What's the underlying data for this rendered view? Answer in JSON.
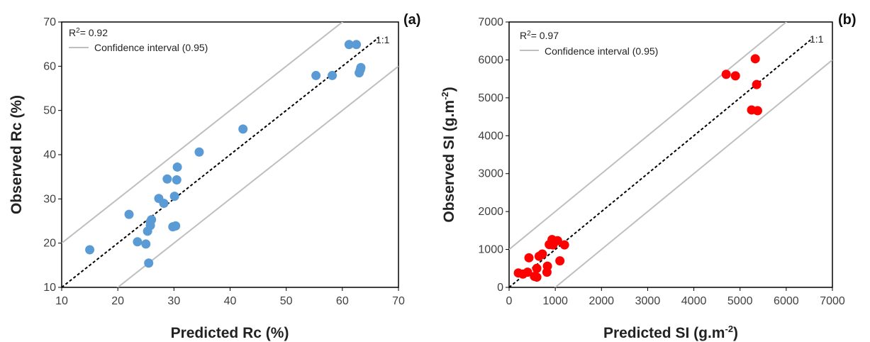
{
  "chart_data": [
    {
      "type": "scatter",
      "panel_label": "(a)",
      "xlabel": "Predicted Rc (%)",
      "ylabel": "Observed Rc (%)",
      "xlim": [
        10,
        70
      ],
      "ylim": [
        10,
        70
      ],
      "x_ticks": [
        "10",
        "20",
        "30",
        "40",
        "50",
        "60",
        "70"
      ],
      "y_ticks": [
        "10",
        "20",
        "30",
        "40",
        "50",
        "60",
        "70"
      ],
      "grid": false,
      "r2_prefix": "R",
      "r2_sup": "2",
      "r2_rest": "= 0.92",
      "legend_entry": "Confidence interval (0.95)",
      "legend_position": "top-left",
      "one_to_one_label": "1:1",
      "ci_offset": 10,
      "color": "#5b9bd5",
      "points": [
        {
          "x": 15,
          "y": 18.5
        },
        {
          "x": 22,
          "y": 26.5
        },
        {
          "x": 23.5,
          "y": 20.3
        },
        {
          "x": 25,
          "y": 19.8
        },
        {
          "x": 25.5,
          "y": 15.5
        },
        {
          "x": 25.3,
          "y": 22.7
        },
        {
          "x": 25.8,
          "y": 24
        },
        {
          "x": 25.8,
          "y": 24.8
        },
        {
          "x": 26,
          "y": 25.3
        },
        {
          "x": 27.3,
          "y": 30.1
        },
        {
          "x": 28.2,
          "y": 29
        },
        {
          "x": 28.8,
          "y": 34.5
        },
        {
          "x": 29.8,
          "y": 23.7
        },
        {
          "x": 30.3,
          "y": 23.9
        },
        {
          "x": 30.1,
          "y": 30.6
        },
        {
          "x": 30.5,
          "y": 34.3
        },
        {
          "x": 30.6,
          "y": 37.2
        },
        {
          "x": 34.5,
          "y": 40.6
        },
        {
          "x": 42.3,
          "y": 45.8
        },
        {
          "x": 55.3,
          "y": 57.9
        },
        {
          "x": 58.2,
          "y": 57.9
        },
        {
          "x": 61.2,
          "y": 64.9
        },
        {
          "x": 62.5,
          "y": 64.9
        },
        {
          "x": 63,
          "y": 58.5
        },
        {
          "x": 63.2,
          "y": 59.2
        },
        {
          "x": 63.3,
          "y": 59.7
        }
      ]
    },
    {
      "type": "scatter",
      "panel_label": "(b)",
      "xlabel_main": "Predicted SI (g.m",
      "xlabel_sup": "-2",
      "xlabel_end": ")",
      "ylabel_main": "Observed SI (g.m",
      "ylabel_sup": "-2",
      "ylabel_end": ")",
      "xlim": [
        0,
        7000
      ],
      "ylim": [
        0,
        7000
      ],
      "x_ticks": [
        "0",
        "1000",
        "2000",
        "3000",
        "4000",
        "5000",
        "6000",
        "7000"
      ],
      "y_ticks": [
        "0",
        "1000",
        "2000",
        "3000",
        "4000",
        "5000",
        "6000",
        "7000"
      ],
      "grid": false,
      "r2_prefix": "R",
      "r2_sup": "2",
      "r2_rest": "= 0.97",
      "legend_entry": "Confidence interval (0.95)",
      "legend_position": "top-left",
      "one_to_one_label": "1:1",
      "ci_offset": 1000,
      "color": "#ff0000",
      "points": [
        {
          "x": 200,
          "y": 380
        },
        {
          "x": 300,
          "y": 350
        },
        {
          "x": 400,
          "y": 400
        },
        {
          "x": 430,
          "y": 780
        },
        {
          "x": 550,
          "y": 290
        },
        {
          "x": 600,
          "y": 270
        },
        {
          "x": 600,
          "y": 500
        },
        {
          "x": 650,
          "y": 820
        },
        {
          "x": 720,
          "y": 880
        },
        {
          "x": 820,
          "y": 400
        },
        {
          "x": 830,
          "y": 560
        },
        {
          "x": 870,
          "y": 1130
        },
        {
          "x": 930,
          "y": 1260
        },
        {
          "x": 950,
          "y": 1120
        },
        {
          "x": 1050,
          "y": 1230
        },
        {
          "x": 1100,
          "y": 700
        },
        {
          "x": 1200,
          "y": 1120
        },
        {
          "x": 4700,
          "y": 5620
        },
        {
          "x": 4900,
          "y": 5580
        },
        {
          "x": 5250,
          "y": 4680
        },
        {
          "x": 5330,
          "y": 6030
        },
        {
          "x": 5380,
          "y": 4660
        },
        {
          "x": 5360,
          "y": 5350
        }
      ]
    }
  ]
}
